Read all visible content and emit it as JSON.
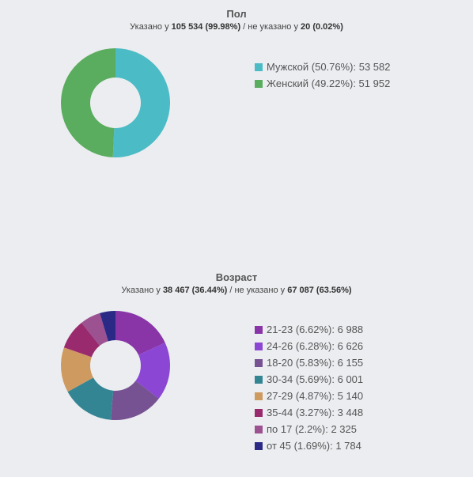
{
  "chart_data": [
    {
      "type": "pie",
      "title": "Пол",
      "subtitle": {
        "prefix": "Указано у ",
        "specified": "105 534 (99.98%)",
        "middle": " / не указано у ",
        "unspecified": "20 (0.02%)"
      },
      "slices": [
        {
          "label": "Мужской (50.76%): 53 582",
          "name": "Мужской",
          "percent": 50.76,
          "value": 53582,
          "color": "#4bbbc6"
        },
        {
          "label": "Женский (49.22%): 51 952",
          "name": "Женский",
          "percent": 49.22,
          "value": 51952,
          "color": "#5aad5e"
        }
      ]
    },
    {
      "type": "pie",
      "title": "Возраст",
      "subtitle": {
        "prefix": "Указано у ",
        "specified": "38 467 (36.44%)",
        "middle": " / не указано у ",
        "unspecified": "67 087 (63.56%)"
      },
      "slices": [
        {
          "label": "21-23 (6.62%): 6 988",
          "name": "21-23",
          "percent": 6.62,
          "value": 6988,
          "color": "#8935a8"
        },
        {
          "label": "24-26 (6.28%): 6 626",
          "name": "24-26",
          "percent": 6.28,
          "value": 6626,
          "color": "#8b46d4"
        },
        {
          "label": "18-20 (5.83%): 6 155",
          "name": "18-20",
          "percent": 5.83,
          "value": 6155,
          "color": "#775293"
        },
        {
          "label": "30-34 (5.69%): 6 001",
          "name": "30-34",
          "percent": 5.69,
          "value": 6001,
          "color": "#348594"
        },
        {
          "label": "27-29 (4.87%): 5 140",
          "name": "27-29",
          "percent": 4.87,
          "value": 5140,
          "color": "#cf9a60"
        },
        {
          "label": "35-44 (3.27%): 3 448",
          "name": "35-44",
          "percent": 3.27,
          "value": 3448,
          "color": "#9a2a6e"
        },
        {
          "label": "по 17 (2.2%): 2 325",
          "name": "по 17",
          "percent": 2.2,
          "value": 2325,
          "color": "#9c5191"
        },
        {
          "label": "от 45 (1.69%): 1 784",
          "name": "от 45",
          "percent": 1.69,
          "value": 1784,
          "color": "#2a2a86"
        }
      ]
    }
  ]
}
